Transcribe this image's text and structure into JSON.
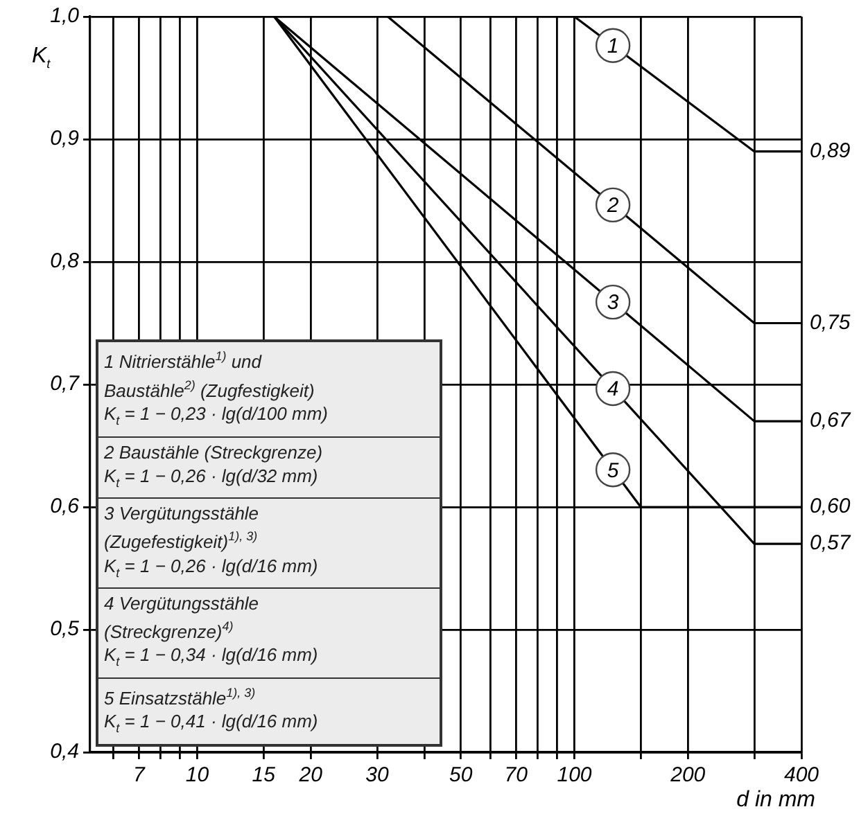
{
  "chart_data": {
    "type": "line",
    "xlabel": "d in mm",
    "ylabel": "K$_{t}$",
    "log": "x",
    "xlim": [
      5.2,
      400
    ],
    "xticks": [
      {
        "value": 6,
        "label": null
      },
      7,
      {
        "value": 8,
        "label": null
      },
      {
        "value": 9,
        "label": null
      },
      10,
      15,
      20,
      30,
      {
        "value": 40,
        "label": null
      },
      50,
      {
        "value": 60,
        "label": null
      },
      70,
      {
        "value": 80,
        "label": null
      },
      {
        "value": 90,
        "label": null
      },
      100,
      {
        "value": 150,
        "label": null
      },
      200,
      {
        "value": 300,
        "label": null
      },
      400
    ],
    "ylim": [
      0.4,
      1.0
    ],
    "yticks": [
      {
        "value": 0.4,
        "label": "0,4"
      },
      {
        "value": 0.5,
        "label": "0,5"
      },
      {
        "value": 0.6,
        "label": "0,6"
      },
      {
        "value": 0.7,
        "label": "0,7"
      },
      {
        "value": 0.8,
        "label": "0,8"
      },
      {
        "value": 0.9,
        "label": "0,9"
      },
      {
        "value": 1.0,
        "label": "1,0"
      }
    ],
    "grid": true,
    "marker": "none",
    "series": [
      {
        "name": "1",
        "color": "#000000",
        "x": [
          100,
          300,
          400
        ],
        "values": [
          1.0,
          0.89,
          0.89
        ],
        "value_labels": [
          null,
          null,
          "0,89"
        ]
      },
      {
        "name": "2",
        "color": "#000000",
        "x": [
          32,
          300,
          400
        ],
        "values": [
          1.0,
          0.75,
          0.75
        ],
        "value_labels": [
          null,
          null,
          "0,75"
        ]
      },
      {
        "name": "3",
        "color": "#000000",
        "x": [
          16,
          300,
          400
        ],
        "values": [
          1.0,
          0.67,
          0.67
        ],
        "value_labels": [
          null,
          null,
          "0,67"
        ]
      },
      {
        "name": "4",
        "color": "#000000",
        "x": [
          16,
          300,
          400
        ],
        "values": [
          1.0,
          0.57,
          0.57
        ],
        "value_labels": [
          null,
          null,
          "0,57"
        ]
      },
      {
        "name": "5",
        "color": "#000000",
        "x": [
          16,
          150,
          400
        ],
        "values": [
          1.0,
          0.6,
          0.6
        ],
        "value_labels": [
          null,
          null,
          "0,60"
        ]
      }
    ],
    "annotations": [
      "1 Nitrierstähle$^{1)}$ und\nBaustähle$^{2)}$ (Zugfestigkeit)\nK$_{t}$ = 1 − 0,23 · lg(d/100 mm)",
      "2 Baustähle (Streckgrenze)\nK$_{t}$ = 1 − 0,26 · lg(d/32 mm)",
      "3 Vergütungsstähle\n(Zugefestigkeit)$^{1), 3)}$\nK$_{t}$ = 1 − 0,26 · lg(d/16 mm)",
      "4 Vergütungsstähle\n(Streckgrenze)$^{4)}$\nK$_{t}$ = 1 − 0,34 · lg(d/16 mm)",
      "5 Einsatzstähle$^{1), 3)}$\nK$_{t}$ = 1 − 0,41 · lg(d/16 mm)"
    ]
  }
}
